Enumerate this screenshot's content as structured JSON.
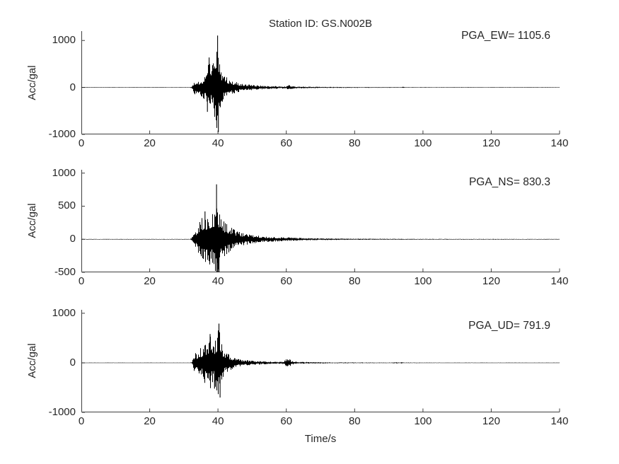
{
  "figure": {
    "title": "Station ID: GS.N002B",
    "xlabel": "Time/s",
    "background": "#ffffff",
    "axis_color": "#3f3f3f",
    "text_color": "#262626",
    "waveform_color": "#000000"
  },
  "chart_data": [
    {
      "type": "line",
      "name": "EW",
      "pga_label": "PGA_EW= 1105.6",
      "pga": 1105.6,
      "ylabel": "Acc/gal",
      "ylim": [
        -1000,
        1200
      ],
      "yticks": [
        -1000,
        0,
        1000
      ],
      "xlim": [
        0,
        140
      ],
      "xticks": [
        0,
        20,
        40,
        60,
        80,
        100,
        120,
        140
      ],
      "arrival_time_s": 32.5,
      "peak_time_s": 39.9,
      "noise_floor_gal": 4,
      "envelope_t_gal": [
        [
          0,
          4
        ],
        [
          31.8,
          4
        ],
        [
          32.3,
          18
        ],
        [
          32.8,
          100
        ],
        [
          33.2,
          150
        ],
        [
          33.6,
          125
        ],
        [
          34,
          170
        ],
        [
          34.5,
          145
        ],
        [
          35,
          225
        ],
        [
          35.5,
          185
        ],
        [
          36,
          295
        ],
        [
          36.5,
          275
        ],
        [
          37,
          470
        ],
        [
          37.4,
          620
        ],
        [
          37.8,
          380
        ],
        [
          38.3,
          450
        ],
        [
          38.8,
          560
        ],
        [
          39.3,
          740
        ],
        [
          39.8,
          990
        ],
        [
          40.1,
          880
        ],
        [
          40.4,
          590
        ],
        [
          40.8,
          420
        ],
        [
          41.3,
          320
        ],
        [
          41.8,
          265
        ],
        [
          42.3,
          230
        ],
        [
          43,
          200
        ],
        [
          43.7,
          170
        ],
        [
          44.5,
          140
        ],
        [
          45.5,
          112
        ],
        [
          46.5,
          92
        ],
        [
          48,
          72
        ],
        [
          50,
          56
        ],
        [
          52,
          43
        ],
        [
          54,
          35
        ],
        [
          56,
          30
        ],
        [
          58,
          26
        ],
        [
          60,
          24
        ],
        [
          60.8,
          56
        ],
        [
          61.3,
          44
        ],
        [
          61.8,
          26
        ],
        [
          63,
          20
        ],
        [
          65,
          18
        ],
        [
          68,
          15
        ],
        [
          72,
          12
        ],
        [
          76,
          10
        ],
        [
          80,
          9
        ],
        [
          85,
          8
        ],
        [
          90,
          7
        ],
        [
          93.5,
          7
        ],
        [
          94.2,
          14
        ],
        [
          95,
          7
        ],
        [
          100,
          6
        ],
        [
          110,
          5
        ],
        [
          120,
          5
        ],
        [
          130,
          4
        ],
        [
          140,
          4
        ]
      ],
      "spikes_t_gal": [
        [
          39.88,
          1105.6
        ],
        [
          40.12,
          -950
        ],
        [
          39.5,
          -700
        ],
        [
          37.4,
          640
        ],
        [
          36.9,
          -520
        ]
      ]
    },
    {
      "type": "line",
      "name": "NS",
      "pga_label": "PGA_NS= 830.3",
      "pga": 830.3,
      "ylabel": "Acc/gal",
      "ylim": [
        -500,
        1050
      ],
      "yticks": [
        -500,
        0,
        500,
        1000
      ],
      "xlim": [
        0,
        140
      ],
      "xticks": [
        0,
        20,
        40,
        60,
        80,
        100,
        120,
        140
      ],
      "arrival_time_s": 32.5,
      "peak_time_s": 39.6,
      "noise_floor_gal": 4,
      "envelope_t_gal": [
        [
          0,
          4
        ],
        [
          31.8,
          4
        ],
        [
          32.3,
          18
        ],
        [
          32.8,
          110
        ],
        [
          33.2,
          165
        ],
        [
          33.7,
          140
        ],
        [
          34.2,
          205
        ],
        [
          34.7,
          265
        ],
        [
          35.2,
          350
        ],
        [
          35.7,
          300
        ],
        [
          36.2,
          385
        ],
        [
          36.7,
          330
        ],
        [
          37.2,
          425
        ],
        [
          37.7,
          380
        ],
        [
          38.2,
          350
        ],
        [
          38.7,
          425
        ],
        [
          39.2,
          510
        ],
        [
          39.6,
          760
        ],
        [
          39.9,
          560
        ],
        [
          40.2,
          450
        ],
        [
          40.6,
          385
        ],
        [
          41,
          325
        ],
        [
          41.5,
          285
        ],
        [
          42,
          252
        ],
        [
          42.7,
          222
        ],
        [
          43.5,
          190
        ],
        [
          44.5,
          158
        ],
        [
          45.5,
          128
        ],
        [
          46.5,
          105
        ],
        [
          47.5,
          92
        ],
        [
          49,
          76
        ],
        [
          51,
          60
        ],
        [
          53,
          47
        ],
        [
          55,
          40
        ],
        [
          57,
          34
        ],
        [
          59,
          29
        ],
        [
          61,
          27
        ],
        [
          63,
          23
        ],
        [
          65,
          19
        ],
        [
          68,
          15
        ],
        [
          72,
          12
        ],
        [
          76,
          10
        ],
        [
          80,
          9
        ],
        [
          85,
          8
        ],
        [
          90,
          7
        ],
        [
          95,
          6
        ],
        [
          100,
          6
        ],
        [
          110,
          5
        ],
        [
          120,
          5
        ],
        [
          130,
          4
        ],
        [
          140,
          4
        ]
      ],
      "spikes_t_gal": [
        [
          39.58,
          830.3
        ],
        [
          39.92,
          -620
        ],
        [
          40.3,
          -560
        ],
        [
          36.2,
          420
        ]
      ]
    },
    {
      "type": "line",
      "name": "UD",
      "pga_label": "PGA_UD= 791.9",
      "pga": 791.9,
      "ylabel": "Acc/gal",
      "ylim": [
        -1000,
        1070
      ],
      "yticks": [
        -1000,
        0,
        1000
      ],
      "xlim": [
        0,
        140
      ],
      "xticks": [
        0,
        20,
        40,
        60,
        80,
        100,
        120,
        140
      ],
      "arrival_time_s": 32.6,
      "peak_time_s": 40.3,
      "noise_floor_gal": 4,
      "envelope_t_gal": [
        [
          0,
          4
        ],
        [
          31.9,
          4
        ],
        [
          32.4,
          22
        ],
        [
          32.9,
          145
        ],
        [
          33.3,
          225
        ],
        [
          33.8,
          185
        ],
        [
          34.3,
          265
        ],
        [
          34.8,
          305
        ],
        [
          35.3,
          285
        ],
        [
          35.8,
          385
        ],
        [
          36.3,
          425
        ],
        [
          36.8,
          365
        ],
        [
          37.3,
          485
        ],
        [
          37.7,
          565
        ],
        [
          38.2,
          425
        ],
        [
          38.7,
          385
        ],
        [
          39.2,
          485
        ],
        [
          39.7,
          565
        ],
        [
          40.2,
          700
        ],
        [
          40.6,
          600
        ],
        [
          41,
          405
        ],
        [
          41.5,
          305
        ],
        [
          42,
          245
        ],
        [
          42.7,
          195
        ],
        [
          43.5,
          152
        ],
        [
          44.5,
          112
        ],
        [
          45.5,
          88
        ],
        [
          47,
          66
        ],
        [
          49,
          48
        ],
        [
          51,
          38
        ],
        [
          53,
          31
        ],
        [
          55,
          26
        ],
        [
          57,
          23
        ],
        [
          59,
          22
        ],
        [
          59.8,
          62
        ],
        [
          60.4,
          92
        ],
        [
          61,
          72
        ],
        [
          61.6,
          42
        ],
        [
          62.5,
          26
        ],
        [
          64,
          19
        ],
        [
          66,
          16
        ],
        [
          70,
          12
        ],
        [
          75,
          9
        ],
        [
          80,
          8
        ],
        [
          85,
          7
        ],
        [
          90,
          7
        ],
        [
          93.8,
          12
        ],
        [
          94.5,
          7
        ],
        [
          100,
          6
        ],
        [
          110,
          5
        ],
        [
          120,
          5
        ],
        [
          130,
          4
        ],
        [
          140,
          4
        ]
      ],
      "spikes_t_gal": [
        [
          40.28,
          791.9
        ],
        [
          40.62,
          -700
        ],
        [
          37.7,
          580
        ],
        [
          39.0,
          -520
        ]
      ]
    }
  ]
}
